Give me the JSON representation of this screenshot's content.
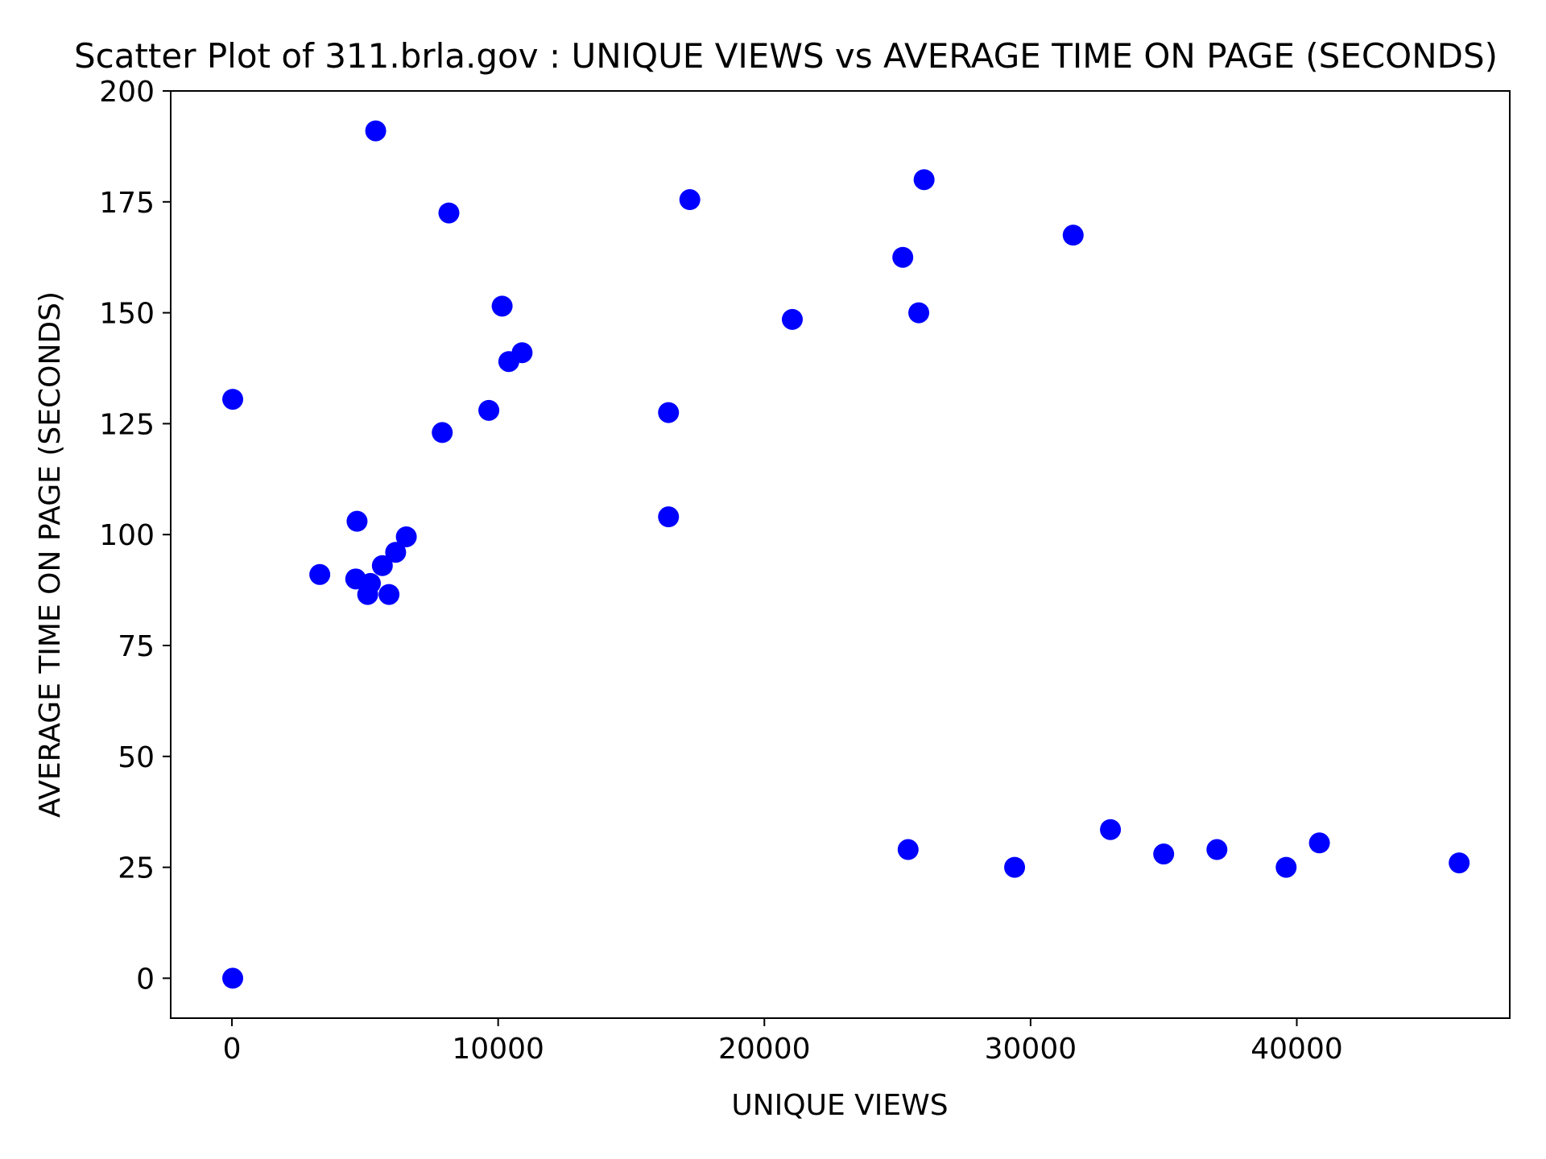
{
  "chart_data": {
    "type": "scatter",
    "title": "Scatter Plot of 311.brla.gov : UNIQUE VIEWS vs AVERAGE TIME ON PAGE (SECONDS)",
    "xlabel": "UNIQUE VIEWS",
    "ylabel": "AVERAGE TIME ON PAGE (SECONDS)",
    "xlim": [
      -2300,
      48000
    ],
    "ylim": [
      -9,
      200
    ],
    "xticks": [
      0,
      10000,
      20000,
      30000,
      40000
    ],
    "yticks": [
      0,
      25,
      50,
      75,
      100,
      125,
      150,
      175,
      200
    ],
    "grid": false,
    "legend": "none",
    "marker_color": "#0000ff",
    "points": [
      {
        "x": 30,
        "y": 0
      },
      {
        "x": 30,
        "y": 130.5
      },
      {
        "x": 3300,
        "y": 91
      },
      {
        "x": 4650,
        "y": 90
      },
      {
        "x": 4700,
        "y": 103
      },
      {
        "x": 5100,
        "y": 86.5
      },
      {
        "x": 5200,
        "y": 89
      },
      {
        "x": 5400,
        "y": 191
      },
      {
        "x": 5650,
        "y": 93
      },
      {
        "x": 5900,
        "y": 86.5
      },
      {
        "x": 6150,
        "y": 96
      },
      {
        "x": 6550,
        "y": 99.5
      },
      {
        "x": 7900,
        "y": 123
      },
      {
        "x": 8150,
        "y": 172.5
      },
      {
        "x": 9650,
        "y": 128
      },
      {
        "x": 10150,
        "y": 151.5
      },
      {
        "x": 10400,
        "y": 139
      },
      {
        "x": 10900,
        "y": 141
      },
      {
        "x": 16400,
        "y": 127.5
      },
      {
        "x": 16400,
        "y": 104
      },
      {
        "x": 17200,
        "y": 175.5
      },
      {
        "x": 21050,
        "y": 148.5
      },
      {
        "x": 25200,
        "y": 162.5
      },
      {
        "x": 25400,
        "y": 29
      },
      {
        "x": 25800,
        "y": 150
      },
      {
        "x": 26000,
        "y": 180
      },
      {
        "x": 29400,
        "y": 25
      },
      {
        "x": 31600,
        "y": 167.5
      },
      {
        "x": 33000,
        "y": 33.5
      },
      {
        "x": 35000,
        "y": 28
      },
      {
        "x": 37000,
        "y": 29
      },
      {
        "x": 39600,
        "y": 25
      },
      {
        "x": 40850,
        "y": 30.5
      },
      {
        "x": 46100,
        "y": 26
      }
    ]
  }
}
